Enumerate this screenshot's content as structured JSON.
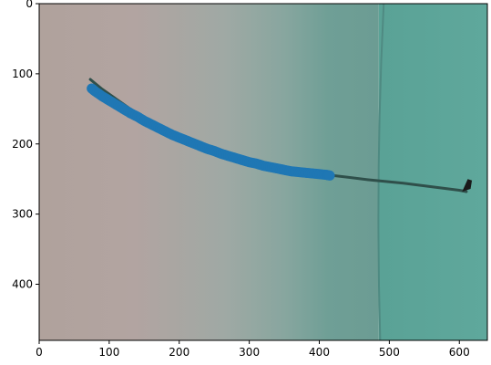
{
  "chart_data": {
    "type": "scatter",
    "title": "",
    "xlabel": "",
    "ylabel": "",
    "xlim": [
      0,
      640
    ],
    "ylim": [
      480,
      0
    ],
    "x_ticks": [
      0,
      100,
      200,
      300,
      400,
      500,
      600
    ],
    "y_ticks": [
      0,
      100,
      200,
      300,
      400
    ],
    "grid": false,
    "background": "photographic image (pinkish-grey left fading to teal right, darker teal panel beyond x≈485)",
    "series": [
      {
        "color": "#1f77b4",
        "marker": "o",
        "x": [
          75,
          80,
          90,
          100,
          110,
          120,
          130,
          140,
          150,
          160,
          170,
          180,
          190,
          200,
          210,
          220,
          230,
          240,
          250,
          260,
          270,
          280,
          290,
          300,
          310,
          320,
          330,
          340,
          350,
          360,
          370,
          380,
          390,
          400,
          410,
          415
        ],
        "y": [
          121,
          125,
          132,
          138,
          144,
          150,
          156,
          161,
          167,
          172,
          177,
          182,
          187,
          191,
          195,
          199,
          203,
          207,
          210,
          214,
          217,
          220,
          223,
          226,
          228,
          231,
          233,
          235,
          237,
          239,
          240,
          241,
          242,
          243,
          244,
          245
        ]
      }
    ],
    "annotation_line": {
      "color": "#2f4f4a",
      "x": [
        73,
        90,
        130,
        200,
        260,
        330,
        380,
        420,
        470,
        520,
        560,
        600,
        610
      ],
      "y": [
        108,
        122,
        150,
        193,
        219,
        235,
        241,
        245,
        251,
        256,
        261,
        266,
        268
      ]
    }
  }
}
